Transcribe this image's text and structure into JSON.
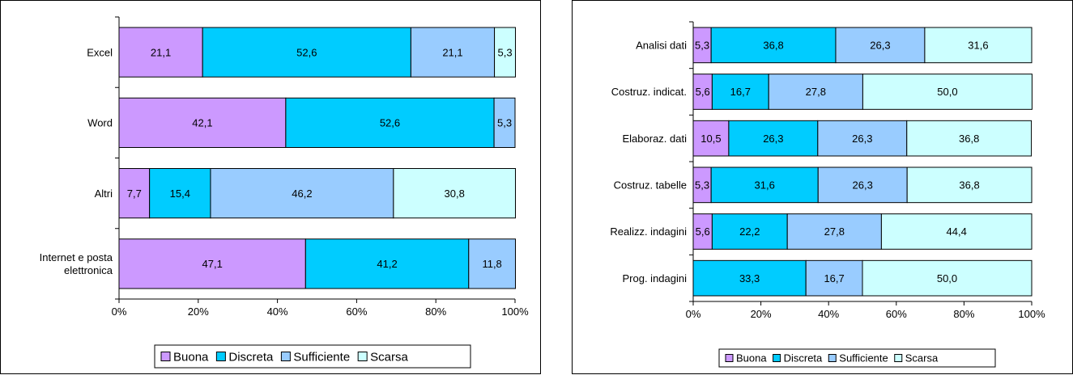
{
  "colors": {
    "Buona": "#cc99ff",
    "Discreta": "#00ccff",
    "Sufficiente": "#99ccff",
    "Scarsa": "#ccffff"
  },
  "chart_data": [
    {
      "type": "bar",
      "orientation": "horizontal",
      "stacked": "percent",
      "categories": [
        [
          "Excel"
        ],
        [
          "Word"
        ],
        [
          "Altri"
        ],
        [
          "Internet e posta",
          "elettronica"
        ]
      ],
      "series": [
        {
          "name": "Buona",
          "values": [
            21.1,
            42.1,
            7.7,
            47.1
          ]
        },
        {
          "name": "Discreta",
          "values": [
            52.6,
            52.6,
            15.4,
            41.2
          ]
        },
        {
          "name": "Sufficiente",
          "values": [
            21.1,
            5.3,
            46.2,
            11.8
          ]
        },
        {
          "name": "Scarsa",
          "values": [
            5.3,
            0,
            30.8,
            0
          ]
        }
      ],
      "labels": [
        [
          "21,1",
          "52,6",
          "21,1",
          "5,3"
        ],
        [
          "42,1",
          "52,6",
          "5,3",
          ""
        ],
        [
          "7,7",
          "15,4",
          "46,2",
          "30,8"
        ],
        [
          "47,1",
          "41,2",
          "11,8",
          ""
        ]
      ],
      "x_ticks": [
        "0%",
        "20%",
        "40%",
        "60%",
        "80%",
        "100%"
      ],
      "xlim": [
        0,
        100
      ],
      "legend": [
        "Buona",
        "Discreta",
        "Sufficiente",
        "Scarsa"
      ],
      "legend_position": "bottom",
      "grid": false
    },
    {
      "type": "bar",
      "orientation": "horizontal",
      "stacked": "percent",
      "categories": [
        [
          "Analisi dati"
        ],
        [
          "Costruz. indicat."
        ],
        [
          "Elaboraz. dati"
        ],
        [
          "Costruz. tabelle"
        ],
        [
          "Realizz. indagini"
        ],
        [
          "Prog. indagini"
        ]
      ],
      "series": [
        {
          "name": "Buona",
          "values": [
            5.3,
            5.6,
            10.5,
            5.3,
            5.6,
            0
          ]
        },
        {
          "name": "Discreta",
          "values": [
            36.8,
            16.7,
            26.3,
            31.6,
            22.2,
            33.3
          ]
        },
        {
          "name": "Sufficiente",
          "values": [
            26.3,
            27.8,
            26.3,
            26.3,
            27.8,
            16.7
          ]
        },
        {
          "name": "Scarsa",
          "values": [
            31.6,
            50.0,
            36.8,
            36.8,
            44.4,
            50.0
          ]
        }
      ],
      "labels": [
        [
          "5,3",
          "36,8",
          "26,3",
          "31,6"
        ],
        [
          "5,6",
          "16,7",
          "27,8",
          "50,0"
        ],
        [
          "10,5",
          "26,3",
          "26,3",
          "36,8"
        ],
        [
          "5,3",
          "31,6",
          "26,3",
          "36,8"
        ],
        [
          "5,6",
          "22,2",
          "27,8",
          "44,4"
        ],
        [
          "",
          "33,3",
          "16,7",
          "50,0"
        ]
      ],
      "x_ticks": [
        "0%",
        "20%",
        "40%",
        "60%",
        "80%",
        "100%"
      ],
      "xlim": [
        0,
        100
      ],
      "legend": [
        "Buona",
        "Discreta",
        "Sufficiente",
        "Scarsa"
      ],
      "legend_position": "bottom",
      "grid": false
    }
  ]
}
